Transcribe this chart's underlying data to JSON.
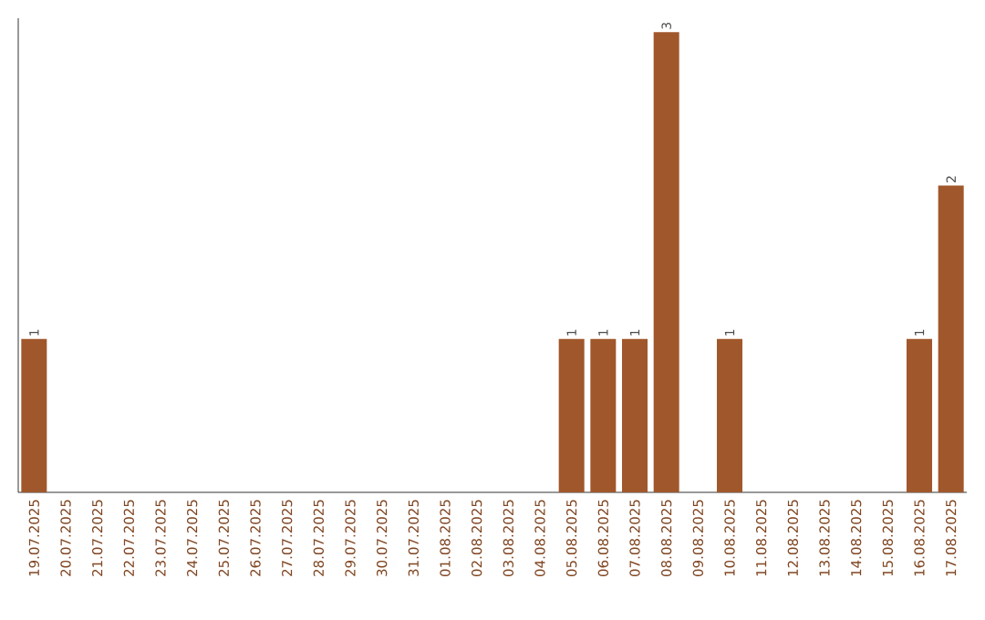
{
  "chart_data": {
    "type": "bar",
    "categories": [
      "19.07.2025",
      "20.07.2025",
      "21.07.2025",
      "22.07.2025",
      "23.07.2025",
      "24.07.2025",
      "25.07.2025",
      "26.07.2025",
      "27.07.2025",
      "28.07.2025",
      "29.07.2025",
      "30.07.2025",
      "31.07.2025",
      "01.08.2025",
      "02.08.2025",
      "03.08.2025",
      "04.08.2025",
      "05.08.2025",
      "06.08.2025",
      "07.08.2025",
      "08.08.2025",
      "09.08.2025",
      "10.08.2025",
      "11.08.2025",
      "12.08.2025",
      "13.08.2025",
      "14.08.2025",
      "15.08.2025",
      "16.08.2025",
      "17.08.2025"
    ],
    "values": [
      1,
      0,
      0,
      0,
      0,
      0,
      0,
      0,
      0,
      0,
      0,
      0,
      0,
      0,
      0,
      0,
      0,
      1,
      1,
      1,
      3,
      0,
      1,
      0,
      0,
      0,
      0,
      0,
      1,
      2
    ],
    "color": "#a0572b",
    "value_labels": [
      "1",
      null,
      null,
      null,
      null,
      null,
      null,
      null,
      null,
      null,
      null,
      null,
      null,
      null,
      null,
      null,
      null,
      "1",
      "1",
      "1",
      "3",
      null,
      "1",
      null,
      null,
      null,
      null,
      null,
      "1",
      "2"
    ]
  }
}
